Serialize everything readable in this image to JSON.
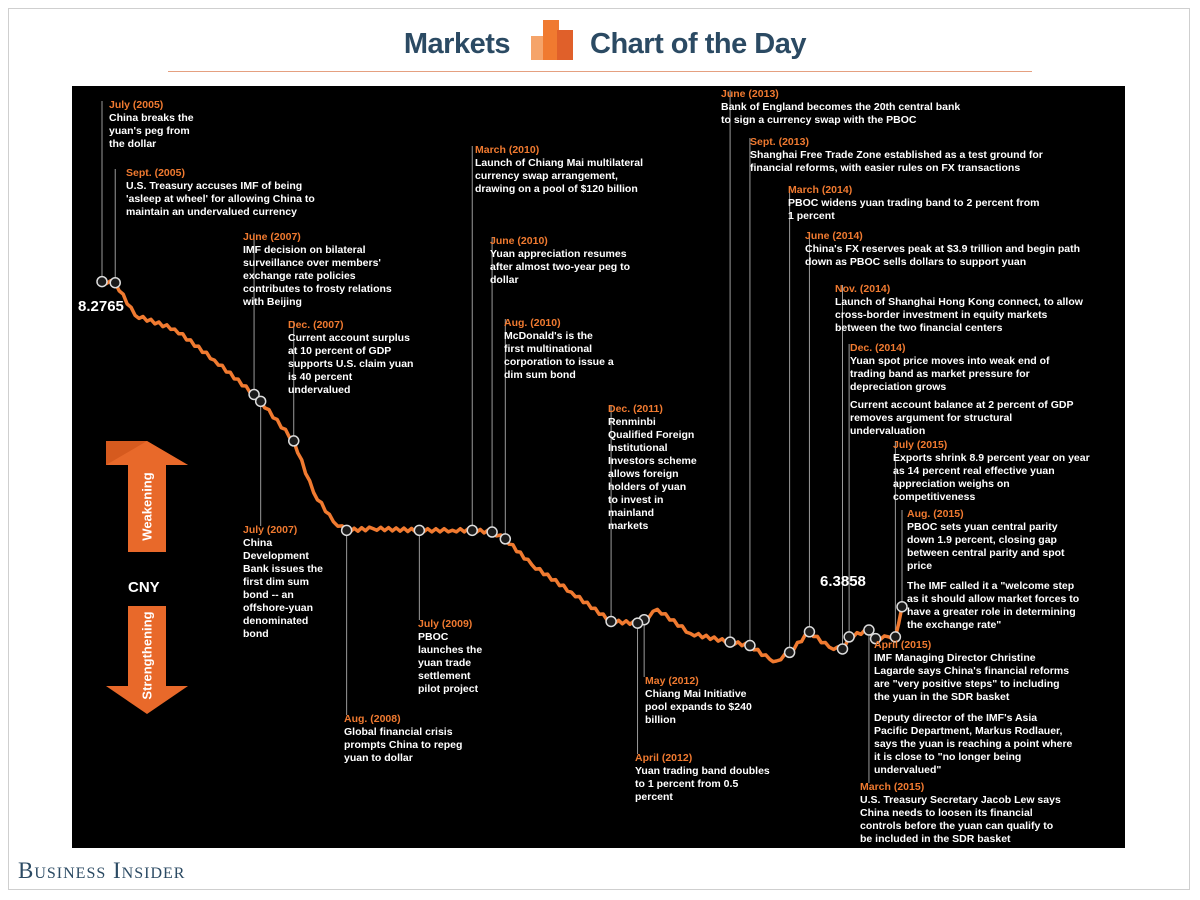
{
  "header": {
    "left": "Markets",
    "right": "Chart of the Day"
  },
  "brand_colors": {
    "accent": "#f07a30",
    "navy": "#2b4a63",
    "background": "#000000"
  },
  "footer": {
    "brand": "Business Insider"
  },
  "chart_data": {
    "type": "line",
    "title": "",
    "ylabel": "CNY",
    "axis_arrows": {
      "up": "Weakening",
      "down": "Strengthening"
    },
    "start_label": "8.2765",
    "end_label": "6.3858",
    "x": [
      "2005-07",
      "2005-09",
      "2005-12",
      "2006-06",
      "2006-12",
      "2007-06",
      "2007-07",
      "2007-12",
      "2008-03",
      "2008-06",
      "2008-08",
      "2008-12",
      "2009-07",
      "2009-12",
      "2010-03",
      "2010-06",
      "2010-08",
      "2010-12",
      "2011-06",
      "2011-12",
      "2012-04",
      "2012-05",
      "2012-07",
      "2012-12",
      "2013-06",
      "2013-09",
      "2013-12",
      "2014-01",
      "2014-03",
      "2014-06",
      "2014-09",
      "2014-11",
      "2014-12",
      "2015-03",
      "2015-04",
      "2015-06",
      "2015-07",
      "2015-08"
    ],
    "values": [
      8.2765,
      8.27,
      8.08,
      8.0,
      7.82,
      7.62,
      7.58,
      7.35,
      7.05,
      6.88,
      6.83,
      6.84,
      6.83,
      6.83,
      6.83,
      6.82,
      6.78,
      6.63,
      6.47,
      6.3,
      6.29,
      6.31,
      6.37,
      6.23,
      6.18,
      6.16,
      6.08,
      6.07,
      6.12,
      6.24,
      6.15,
      6.14,
      6.21,
      6.25,
      6.2,
      6.21,
      6.21,
      6.3858
    ],
    "ylim": [
      6.0,
      8.4
    ],
    "events": [
      {
        "date": "July (2005)",
        "text": "China breaks the\nyuan's peg from\nthe dollar",
        "x": "2005-07"
      },
      {
        "date": "Sept. (2005)",
        "text": "U.S. Treasury accuses IMF of being\n'asleep at wheel' for allowing China to\nmaintain an undervalued currency",
        "x": "2005-09"
      },
      {
        "date": "June (2007)",
        "text": "IMF decision on bilateral\nsurveillance over members'\nexchange rate policies\ncontributes to frosty relations\nwith Beijing",
        "x": "2007-06"
      },
      {
        "date": "Dec. (2007)",
        "text": "Current account surplus\nat 10 percent of GDP\nsupports U.S. claim yuan\nis 40 percent\nundervalued",
        "x": "2007-12"
      },
      {
        "date": "July (2007)",
        "text": "China\nDevelopment\nBank issues the\nfirst dim sum\nbond -- an\noffshore-yuan\ndenominated\nbond",
        "x": "2007-07"
      },
      {
        "date": "Aug. (2008)",
        "text": "Global financial crisis\nprompts China to repeg\nyuan to dollar",
        "x": "2008-08"
      },
      {
        "date": "July (2009)",
        "text": "PBOC\nlaunches the\nyuan trade\nsettlement\npilot project",
        "x": "2009-07"
      },
      {
        "date": "March (2010)",
        "text": "Launch of Chiang Mai multilateral\ncurrency swap arrangement,\ndrawing on a pool of $120 billion",
        "x": "2010-03"
      },
      {
        "date": "June (2010)",
        "text": "Yuan appreciation resumes\nafter almost two-year peg to\ndollar",
        "x": "2010-06"
      },
      {
        "date": "Aug. (2010)",
        "text": "McDonald's is the\nfirst multinational\ncorporation to issue a\ndim sum bond",
        "x": "2010-08"
      },
      {
        "date": "Dec. (2011)",
        "text": "Renminbi\nQualified Foreign\nInstitutional\nInvestors scheme\nallows foreign\nholders of yuan\nto invest in\nmainland\nmarkets",
        "x": "2011-12"
      },
      {
        "date": "May (2012)",
        "text": "Chiang Mai Initiative\npool expands to $240\nbillion",
        "x": "2012-05"
      },
      {
        "date": "April (2012)",
        "text": "Yuan trading band doubles\nto 1 percent from 0.5\npercent",
        "x": "2012-04"
      },
      {
        "date": "June (2013)",
        "text": "Bank of England becomes the 20th central bank\nto sign a currency swap with the PBOC",
        "x": "2013-06"
      },
      {
        "date": "Sept. (2013)",
        "text": "Shanghai Free Trade Zone established as a test ground for\nfinancial reforms, with easier rules on FX transactions",
        "x": "2013-09"
      },
      {
        "date": "March (2014)",
        "text": "PBOC widens yuan trading band to 2 percent from\n1 percent",
        "x": "2014-03"
      },
      {
        "date": "June (2014)",
        "text": "China's FX reserves peak at $3.9 trillion and begin path\ndown as PBOC sells dollars to support yuan",
        "x": "2014-06"
      },
      {
        "date": "Nov. (2014)",
        "text": "Launch of Shanghai Hong Kong connect, to allow\ncross-border investment in equity markets\nbetween the two financial centers",
        "x": "2014-11"
      },
      {
        "date": "Dec. (2014)",
        "text": "Yuan spot price moves into weak end of\ntrading band as market pressure for\ndepreciation grows",
        "x": "2014-12"
      },
      {
        "date": "July (2015)",
        "text": "Exports shrink 8.9 percent year on year\nas 14 percent real effective yuan\nappreciation weighs on\ncompetitiveness",
        "x": "2015-07"
      },
      {
        "date": "Aug. (2015)",
        "text": "PBOC sets yuan central parity\ndown 1.9 percent, closing gap\nbetween central parity and spot\nprice",
        "x": "2015-08"
      },
      {
        "date": "April (2015)",
        "text": "IMF Managing Director Christine\nLagarde says China's financial reforms\nare \"very positive steps\" to including\nthe yuan in the SDR basket",
        "x": "2015-04"
      },
      {
        "date": "March (2015)",
        "text": "U.S. Treasury Secretary Jacob Lew says\nChina needs to loosen its financial\ncontrols before the yuan can qualify to\nbe included in the SDR basket",
        "x": "2015-03"
      }
    ],
    "notes": [
      "Current account balance at 2 percent of GDP\nremoves argument for structural\nundervaluation",
      "The IMF called it a \"welcome step\nas it should allow market forces to\nhave a greater role in determining\nthe exchange rate\"",
      "Deputy director of the IMF's Asia\nPacific Department, Markus Rodlauer,\nsays the yuan is reaching a point where\nit is close to \"no longer being\nundervalued\""
    ]
  }
}
